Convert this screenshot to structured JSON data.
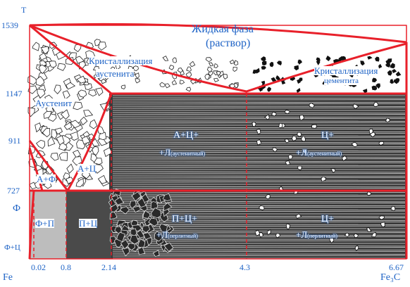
{
  "temperature_axis": {
    "label": "T",
    "ticks": [
      "1539",
      "1147",
      "911",
      "727"
    ],
    "phase_labels": [
      "Ф",
      "Ф+Ц"
    ]
  },
  "composition_axis": {
    "ticks": [
      "0.02",
      "0.8",
      "2.14",
      "4.3",
      "6.67"
    ],
    "left_label": "Fe",
    "right_label": "Fe₃C"
  },
  "regions": {
    "liquid_line1": "Жидкая фаза",
    "liquid_line2": "(раствор)",
    "cryst_austenite_line1": "Кристаллизация",
    "cryst_austenite_line2": "аустенита",
    "cryst_cementite_line1": "Кристаллизация",
    "cryst_cementite_line2": "цементита",
    "austenite": "Аустенит",
    "ferrite_austenite": "А+Ф",
    "austenite_cementite": "А+Ц",
    "ferrite_perlite": "Ф+П",
    "perlite_cementite": "П+Ц",
    "hypo_upper_line1": "А+Ц+",
    "hypo_upper_line2": "+Л",
    "hypo_upper_sub": "(аустенитный)",
    "hyper_upper_line1": "Ц+",
    "hyper_upper_line2": "+Л",
    "hyper_upper_sub": "(аустенитный)",
    "hypo_lower_line1": "П+Ц+",
    "hypo_lower_line2": "+Л",
    "hypo_lower_sub": "(перлитный)",
    "hyper_lower_line1": "Ц+",
    "hyper_lower_line2": "+Л",
    "hyper_lower_sub": "(перлитный)"
  },
  "colors": {
    "phase_lines": "#e8202a",
    "labels": "#1e63c6",
    "texture": "#111111"
  }
}
